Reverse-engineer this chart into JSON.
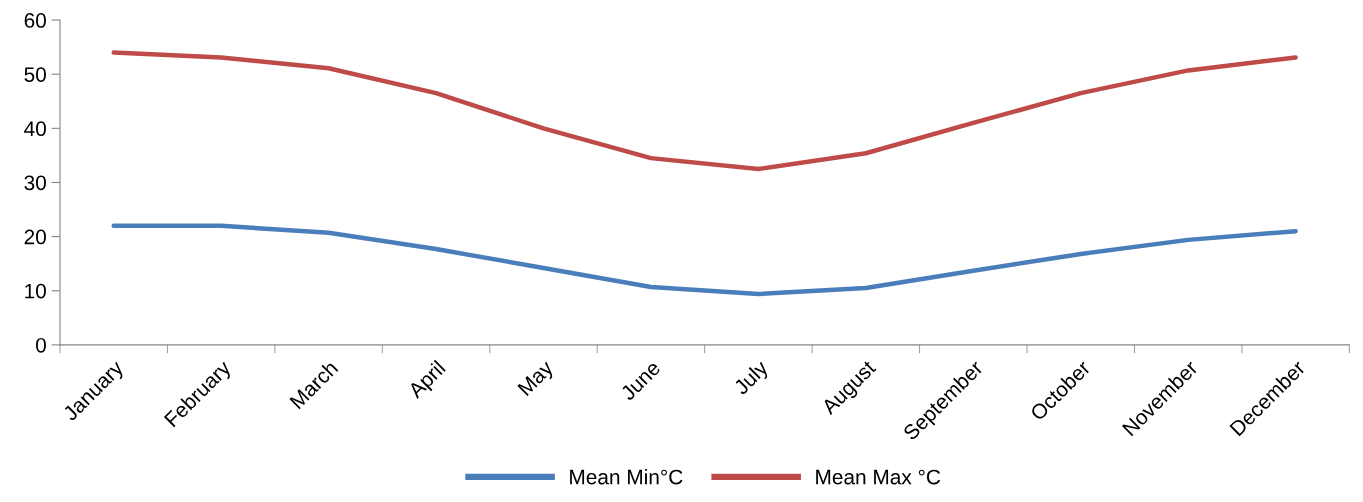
{
  "chart_data": {
    "type": "line",
    "categories": [
      "January",
      "February",
      "March",
      "April",
      "May",
      "June",
      "July",
      "August",
      "September",
      "October",
      "November",
      "December"
    ],
    "series": [
      {
        "name": "Mean Min°C",
        "color": "#4a7ebb",
        "values": [
          22.0,
          22.0,
          20.7,
          17.7,
          14.2,
          10.7,
          9.4,
          10.5,
          13.7,
          16.8,
          19.4,
          21.0
        ]
      },
      {
        "name": "Mean Max °C",
        "color": "#be4b48",
        "values": [
          54.0,
          53.1,
          51.1,
          46.5,
          40.0,
          34.5,
          32.5,
          35.4,
          41.0,
          46.5,
          50.7,
          53.1
        ]
      }
    ],
    "ylim": [
      0,
      60
    ],
    "yticks": [
      0,
      10,
      20,
      30,
      40,
      50,
      60
    ],
    "grid": false,
    "legend": "bottom",
    "marker": "none",
    "line_style": "solid"
  }
}
